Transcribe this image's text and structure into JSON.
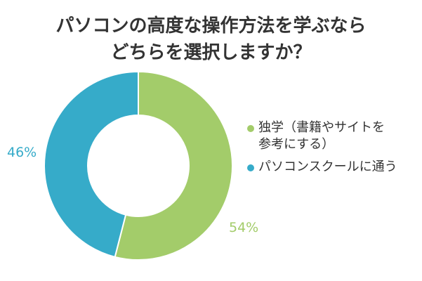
{
  "chart_data": {
    "type": "pie",
    "title": "パソコンの高度な操作方法を学ぶならどちらを選択しますか？",
    "title_lines": [
      "パソコンの高度な操作方法を学ぶなら",
      "どちらを選択しますか？"
    ],
    "donut": true,
    "start_angle_deg": 0,
    "direction": "clockwise",
    "legend_position": "right",
    "slices": [
      {
        "name": "独学（書籍やサイトを参考にする）",
        "legend_lines": [
          "独学（書籍やサイトを",
          "参考にする）"
        ],
        "value": 54,
        "label": "54%",
        "color": "#a3cc6a"
      },
      {
        "name": "パソコンスクールに通う",
        "legend_lines": [
          "パソコンスクールに通う"
        ],
        "value": 46,
        "label": "46%",
        "color": "#36abc9"
      }
    ]
  }
}
